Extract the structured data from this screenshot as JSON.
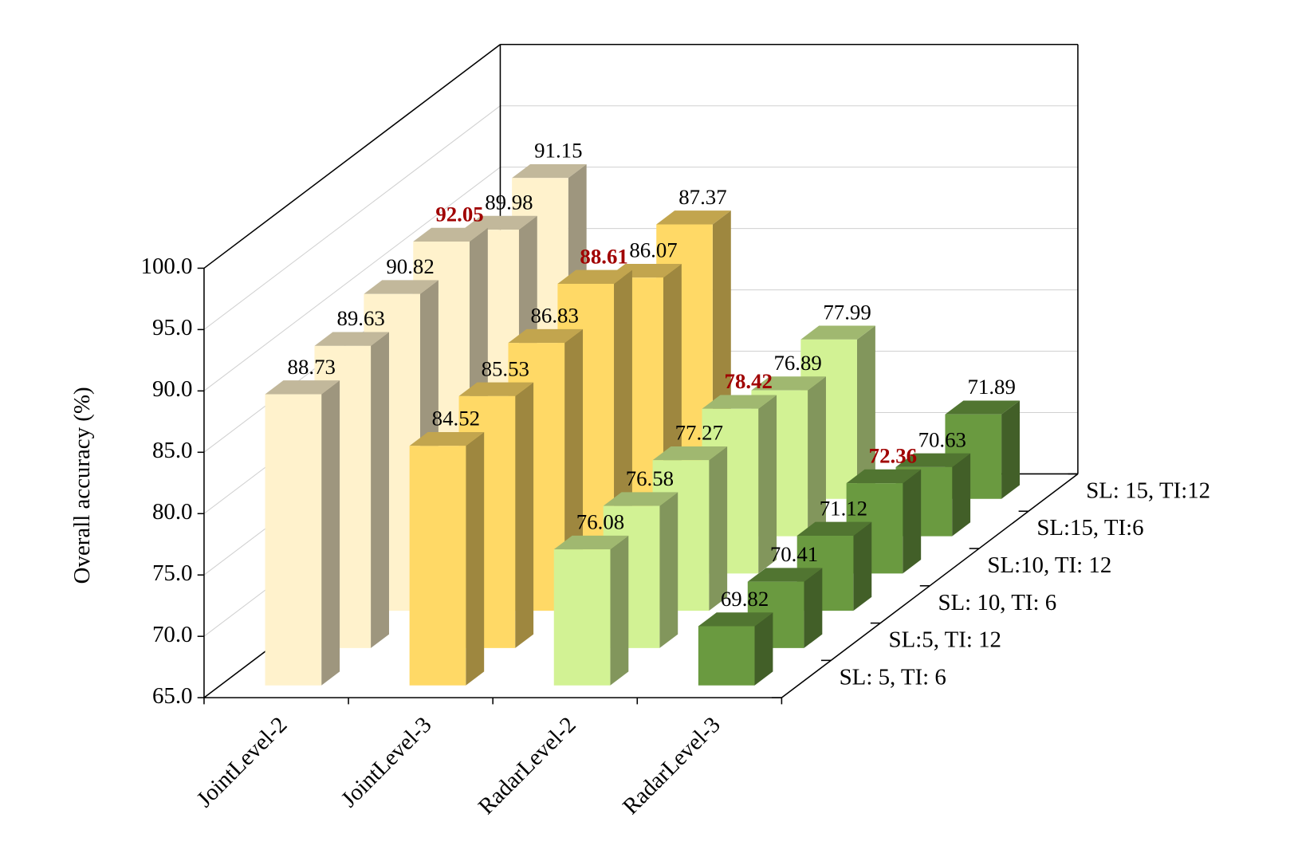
{
  "chart_data": {
    "type": "bar3d",
    "y_label": "Overall accuracy (%)",
    "categories": [
      "JointLevel-2",
      "JointLevel-3",
      "RadarLevel-2",
      "RadarLevel-3"
    ],
    "category_colors": [
      "#fff2cc",
      "#ffd966",
      "#d2f294",
      "#6a9a40"
    ],
    "series": [
      {
        "name": "SL: 5, TI: 6",
        "values": [
          88.73,
          84.52,
          76.08,
          69.82
        ]
      },
      {
        "name": "SL:5, TI: 12",
        "values": [
          89.63,
          85.53,
          76.58,
          70.41
        ]
      },
      {
        "name": "SL: 10, TI: 6",
        "values": [
          90.82,
          86.83,
          77.27,
          71.12
        ]
      },
      {
        "name": "SL:10, TI: 12",
        "values": [
          92.05,
          88.61,
          78.42,
          72.36
        ]
      },
      {
        "name": "SL:15, TI:6",
        "values": [
          89.98,
          86.07,
          76.89,
          70.63
        ]
      },
      {
        "name": "SL: 15, TI:12",
        "values": [
          91.15,
          87.37,
          77.99,
          71.89
        ]
      }
    ],
    "ylim": [
      65,
      100
    ],
    "yticks": [
      {
        "value": 65,
        "label": "65.0"
      },
      {
        "value": 70,
        "label": "70.0"
      },
      {
        "value": 75,
        "label": "75.0"
      },
      {
        "value": 80,
        "label": "80.0"
      },
      {
        "value": 85,
        "label": "85.0"
      },
      {
        "value": 90,
        "label": "90.0"
      },
      {
        "value": 95,
        "label": "95.0"
      },
      {
        "value": 100,
        "label": "100.0"
      }
    ],
    "grid": true,
    "highlight_color": "#a00000"
  }
}
